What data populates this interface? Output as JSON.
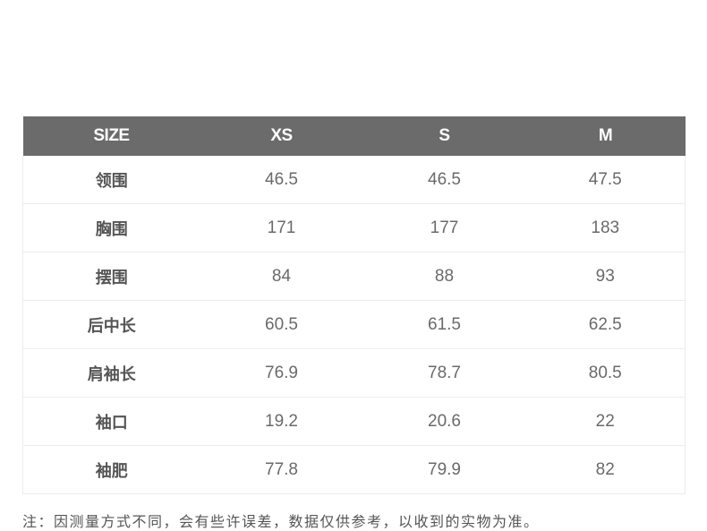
{
  "table": {
    "headers": [
      "SIZE",
      "XS",
      "S",
      "M"
    ],
    "rows": [
      [
        "领围",
        "46.5",
        "46.5",
        "47.5"
      ],
      [
        "胸围",
        "171",
        "177",
        "183"
      ],
      [
        "摆围",
        "84",
        "88",
        "93"
      ],
      [
        "后中长",
        "60.5",
        "61.5",
        "62.5"
      ],
      [
        "肩袖长",
        "76.9",
        "78.7",
        "80.5"
      ],
      [
        "袖口",
        "19.2",
        "20.6",
        "22"
      ],
      [
        "袖肥",
        "77.8",
        "79.9",
        "82"
      ]
    ]
  },
  "note": "注：因测量方式不同，会有些许误差，数据仅供参考，以收到的实物为准。",
  "colors": {
    "header_bg": "#6b6b6b",
    "header_text": "#ffffff",
    "cell_text": "#6a6a6a"
  }
}
